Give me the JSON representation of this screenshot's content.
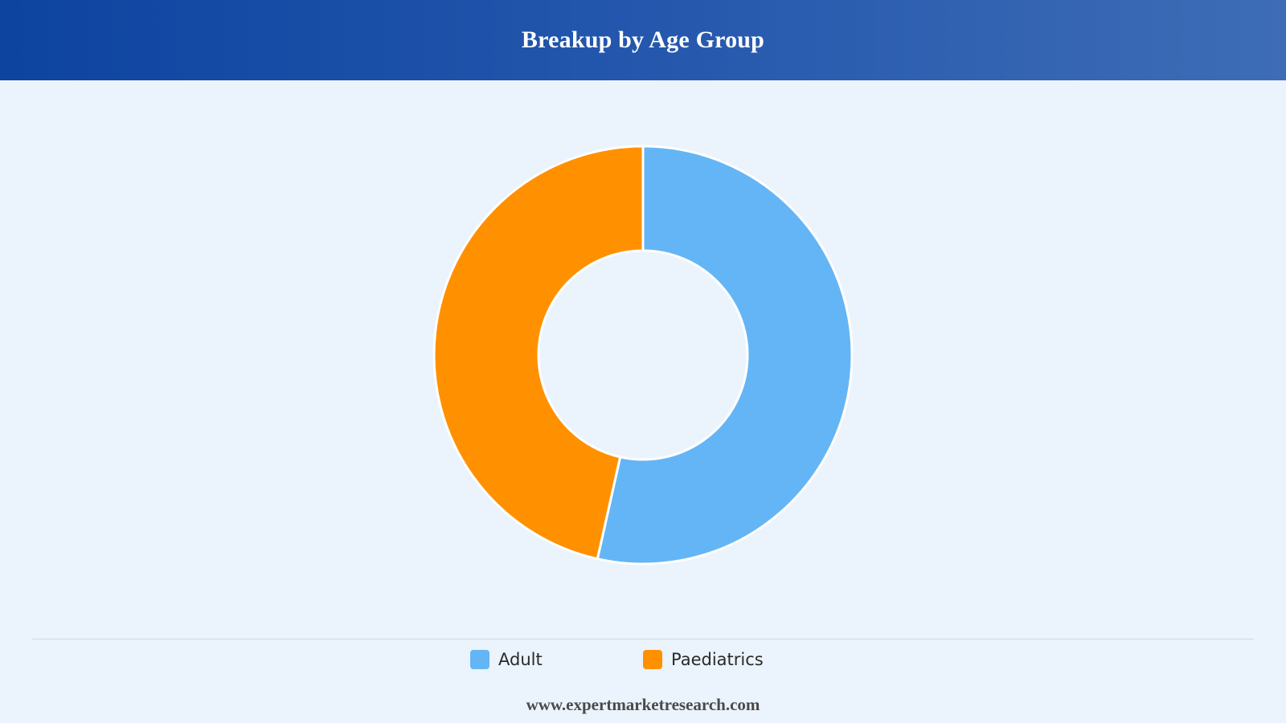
{
  "header": {
    "title": "Breakup by Age Group"
  },
  "chart_data": {
    "type": "pie",
    "donut": true,
    "title": "Breakup by Age Group",
    "categories": [
      "Adult",
      "Paediatrics"
    ],
    "values": [
      53.5,
      46.5
    ],
    "colors": [
      "#64b5f6",
      "#ff9100"
    ],
    "legend_position": "bottom",
    "start_angle": "12 o'clock, clockwise"
  },
  "legend": {
    "items": [
      {
        "label": "Adult",
        "color": "#64b5f6"
      },
      {
        "label": "Paediatrics",
        "color": "#ff9100"
      }
    ]
  },
  "footer": {
    "source": "www.expertmarketresearch.com"
  }
}
